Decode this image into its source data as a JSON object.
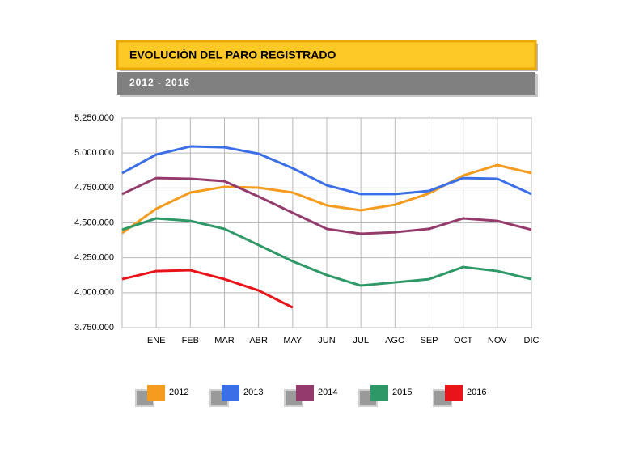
{
  "chart_data": {
    "type": "line",
    "title": "EVOLUCIÓN DEL PARO REGISTRADO",
    "subtitle": "2012 - 2016",
    "categories": [
      null,
      "ENE",
      "FEB",
      "MAR",
      "ABR",
      "MAY",
      "JUN",
      "JUL",
      "AGO",
      "SEP",
      "OCT",
      "NOV",
      "DIC"
    ],
    "series": [
      {
        "name": "2012",
        "color": "#f59b1e",
        "values": [
          4427000,
          4601000,
          4717000,
          4758000,
          4752000,
          4717000,
          4625000,
          4590000,
          4630000,
          4711000,
          4839000,
          4914000,
          4856000
        ]
      },
      {
        "name": "2013",
        "color": "#3a6fe8",
        "values": [
          4856000,
          4989000,
          5047000,
          5041000,
          4995000,
          4891000,
          4769000,
          4706000,
          4706000,
          4729000,
          4821000,
          4816000,
          4706000
        ]
      },
      {
        "name": "2014",
        "color": "#953a6c",
        "values": [
          4706000,
          4821000,
          4816000,
          4798000,
          4688000,
          4572000,
          4457000,
          4422000,
          4433000,
          4457000,
          4532000,
          4514000,
          4451000
        ]
      },
      {
        "name": "2015",
        "color": "#2e9966",
        "values": [
          4451000,
          4532000,
          4514000,
          4457000,
          4341000,
          4225000,
          4126000,
          4051000,
          4074000,
          4097000,
          4184000,
          4155000,
          4097000
        ]
      },
      {
        "name": "2016",
        "color": "#e8141a",
        "values": [
          4097000,
          4155000,
          4161000,
          4097000,
          4016000,
          3894000,
          null,
          null,
          null,
          null,
          null,
          null,
          null
        ]
      }
    ],
    "ylim": [
      3750000,
      5250000
    ],
    "yticks": [
      {
        "value": 3750000,
        "label": "3.750.000"
      },
      {
        "value": 4000000,
        "label": "4.000.000"
      },
      {
        "value": 4250000,
        "label": "4.250.000"
      },
      {
        "value": 4500000,
        "label": "4.500.000"
      },
      {
        "value": 4750000,
        "label": "4.750.000"
      },
      {
        "value": 5000000,
        "label": "5.000.000"
      },
      {
        "value": 5250000,
        "label": "5.250.000"
      }
    ],
    "grid": true
  }
}
